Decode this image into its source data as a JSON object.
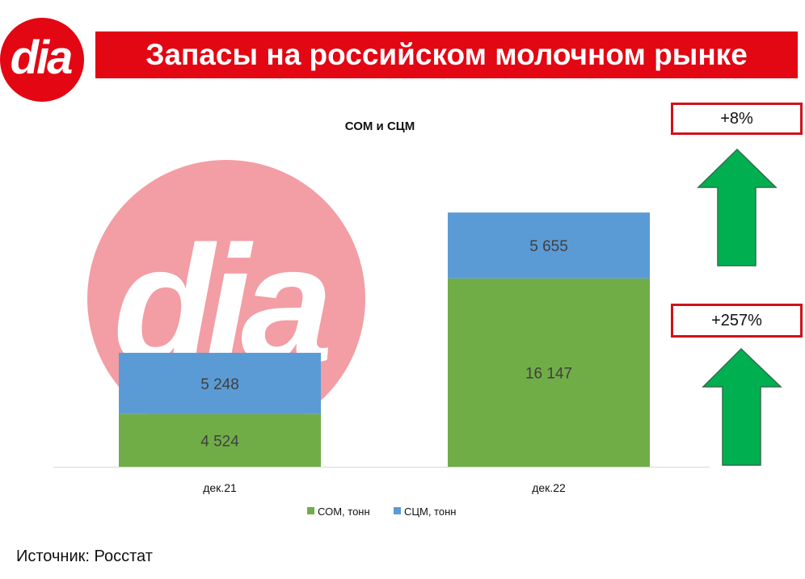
{
  "header": {
    "logo_text": "dia",
    "title": "Запасы на российском молочном рынке"
  },
  "chart_data": {
    "type": "bar",
    "stacked": true,
    "title": "СОМ и СЦМ",
    "categories": [
      "дек.21",
      "дек.22"
    ],
    "series": [
      {
        "name": "СОМ, тонн",
        "values": [
          4524,
          16147
        ],
        "labels": [
          "4 524",
          "16 147"
        ],
        "color": "#70ad47"
      },
      {
        "name": "СЦМ, тонн",
        "values": [
          5248,
          5655
        ],
        "labels": [
          "5 248",
          "5 655"
        ],
        "color": "#5b9bd5"
      }
    ],
    "ylim": [
      0,
      24000
    ],
    "grid": false,
    "legend": "bottom"
  },
  "badges": [
    {
      "label": "+8%"
    },
    {
      "label": "+257%"
    }
  ],
  "colors": {
    "brand_red": "#e30613",
    "arrow_green": "#00b050",
    "watermark_pink": "#f29ea4"
  },
  "source": "Источник: Росстат"
}
